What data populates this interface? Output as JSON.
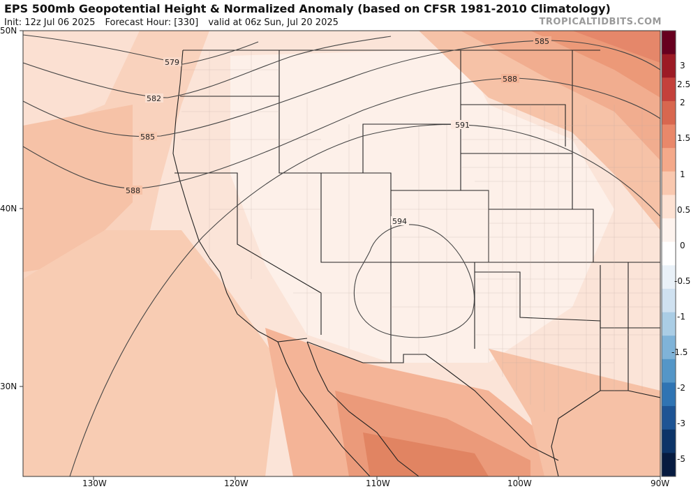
{
  "header": {
    "title": "EPS 500mb Geopotential Height & Normalized Anomaly (based on CFSR 1981-2010 Climatology)",
    "init": "Init: 12z Jul 06 2025",
    "forecast_hour": "Forecast Hour: [330]",
    "valid": "valid at 06z Sun, Jul 20 2025",
    "credit": "TROPICALTIDBITS.COM"
  },
  "axes": {
    "lat_labels": [
      "50N",
      "40N",
      "30N"
    ],
    "lon_labels": [
      "130W",
      "120W",
      "110W",
      "100W",
      "90W"
    ]
  },
  "colorbar": {
    "labels": [
      "3",
      "2.5",
      "2",
      "1.5",
      "1",
      "0.5",
      "0",
      "-0.5",
      "-1",
      "-1.5",
      "-2",
      "-3",
      "-5"
    ],
    "colors": [
      "#67001f",
      "#9c1b25",
      "#c4413b",
      "#d8674f",
      "#e9886a",
      "#f4a98a",
      "#f9c8af",
      "#fde2d3",
      "#fdf3ee",
      "#ffffff",
      "#e9f1f8",
      "#cfe1f0",
      "#aacde5",
      "#7fb3d8",
      "#5496c7",
      "#2f74b3",
      "#1d5494",
      "#0c3468",
      "#061b40"
    ]
  },
  "contours": {
    "labels": [
      "579",
      "582",
      "585",
      "588",
      "591",
      "594",
      "585",
      "588"
    ]
  }
}
